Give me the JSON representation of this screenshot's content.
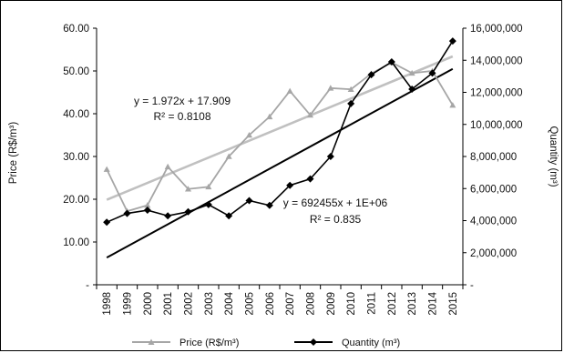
{
  "chart_data": {
    "type": "line",
    "x_categories": [
      "1998",
      "1999",
      "2000",
      "2001",
      "2002",
      "2003",
      "2004",
      "2005",
      "2006",
      "2007",
      "2008",
      "2009",
      "2010",
      "2011",
      "2012",
      "2013",
      "2014",
      "2015"
    ],
    "y_left": {
      "label": "Price (R$/m³)",
      "ticks": [
        "-",
        "10.00",
        "20.00",
        "30.00",
        "40.00",
        "50.00",
        "60.00"
      ],
      "range": [
        0,
        60
      ]
    },
    "y_right": {
      "label": "Quantity  (m³)",
      "ticks": [
        "-",
        "2,000,000",
        "4,000,000",
        "6,000,000",
        "8,000,000",
        "10,000,000",
        "12,000,000",
        "14,000,000",
        "16,000,000"
      ],
      "range": [
        0,
        16000000
      ]
    },
    "series": [
      {
        "name": "Price (R$/m³)",
        "axis": "left",
        "color": "#a6a6a6",
        "marker": "triangle",
        "values": [
          27.0,
          17.2,
          18.6,
          27.6,
          22.4,
          22.9,
          30.0,
          35.0,
          39.3,
          45.3,
          39.7,
          46.0,
          45.7,
          49.4,
          52.0,
          49.5,
          50.0,
          42.0
        ]
      },
      {
        "name": "Quantity  (m³)",
        "axis": "right",
        "color": "#000000",
        "marker": "diamond",
        "values": [
          3900000,
          4450000,
          4650000,
          4300000,
          4550000,
          5000000,
          4300000,
          5250000,
          4950000,
          6200000,
          6600000,
          8000000,
          11300000,
          13100000,
          13900000,
          12200000,
          13200000,
          15200000
        ]
      }
    ],
    "trendlines": [
      {
        "series": "Price (R$/m³)",
        "equation": "y = 1.972x + 17.909",
        "r2": "R² = 0.8108",
        "slope": 1.972,
        "intercept": 17.909,
        "color": "#c0c0c0"
      },
      {
        "series": "Quantity  (m³)",
        "equation": "y = 692455x + 1E+06",
        "r2": "R² = 0.835",
        "slope": 692455,
        "intercept": 1000000,
        "color": "#000000"
      }
    ],
    "legend": {
      "position": "bottom",
      "entries": [
        "Price (R$/m³)",
        "Quantity  (m³)"
      ]
    },
    "grid": false
  }
}
